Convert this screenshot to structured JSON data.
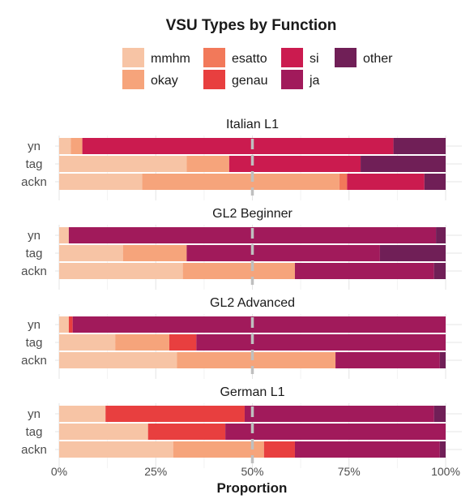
{
  "chart_data": {
    "type": "bar",
    "orientation": "horizontal",
    "stacked": true,
    "title": "VSU Types by Function",
    "xlabel": "Proportion",
    "xlim": [
      0,
      1
    ],
    "x_ticks": [
      0,
      0.25,
      0.5,
      0.75,
      1
    ],
    "x_tick_labels": [
      "0%",
      "25%",
      "50%",
      "75%",
      "100%"
    ],
    "reference_line": 0.5,
    "grid": true,
    "legend_position": "top",
    "legend": [
      {
        "name": "mmhm",
        "color": "#F7C4A5"
      },
      {
        "name": "okay",
        "color": "#F6A47B"
      },
      {
        "name": "esatto",
        "color": "#F2795A"
      },
      {
        "name": "genau",
        "color": "#E83F3F"
      },
      {
        "name": "si",
        "color": "#CB1B4F"
      },
      {
        "name": "ja",
        "color": "#A11A5B"
      },
      {
        "name": "other",
        "color": "#701F57"
      }
    ],
    "categories": [
      "yn",
      "tag",
      "ackn"
    ],
    "panels": [
      {
        "title": "Italian L1",
        "rows": [
          {
            "category": "yn",
            "values": [
              0.03,
              0.03,
              0,
              0,
              0.805,
              0,
              0.135
            ]
          },
          {
            "category": "tag",
            "values": [
              0.33,
              0.11,
              0,
              0,
              0.34,
              0,
              0.22
            ]
          },
          {
            "category": "ackn",
            "values": [
              0.215,
              0.51,
              0.02,
              0,
              0.2,
              0,
              0.055
            ]
          }
        ]
      },
      {
        "title": "GL2 Beginner",
        "rows": [
          {
            "category": "yn",
            "values": [
              0.025,
              0,
              0,
              0,
              0,
              0.95,
              0.025
            ]
          },
          {
            "category": "tag",
            "values": [
              0.165,
              0.165,
              0,
              0,
              0,
              0.5,
              0.17
            ]
          },
          {
            "category": "ackn",
            "values": [
              0.32,
              0.29,
              0,
              0,
              0,
              0.36,
              0.03
            ]
          }
        ]
      },
      {
        "title": "GL2 Advanced",
        "rows": [
          {
            "category": "yn",
            "values": [
              0.025,
              0,
              0,
              0.01,
              0,
              0.965,
              0
            ]
          },
          {
            "category": "tag",
            "values": [
              0.145,
              0.14,
              0,
              0.07,
              0,
              0.645,
              0
            ]
          },
          {
            "category": "ackn",
            "values": [
              0.305,
              0.41,
              0,
              0,
              0,
              0.27,
              0.015
            ]
          }
        ]
      },
      {
        "title": "German L1",
        "rows": [
          {
            "category": "yn",
            "values": [
              0.12,
              0,
              0,
              0.36,
              0,
              0.49,
              0.03
            ]
          },
          {
            "category": "tag",
            "values": [
              0.23,
              0,
              0,
              0.2,
              0,
              0.57,
              0
            ]
          },
          {
            "category": "ackn",
            "values": [
              0.295,
              0.235,
              0,
              0.08,
              0,
              0.375,
              0.015
            ]
          }
        ]
      }
    ]
  }
}
